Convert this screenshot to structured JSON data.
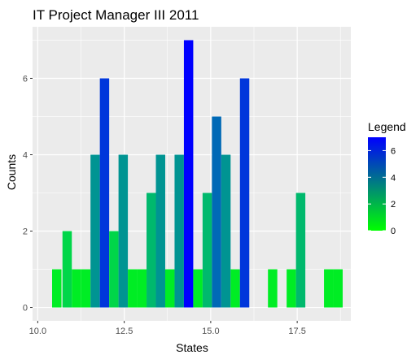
{
  "chart_data": {
    "type": "bar",
    "title": "IT Project Manager III 2011",
    "xlabel": "States",
    "ylabel": "Counts",
    "xlim": [
      9.85,
      19.05
    ],
    "ylim": [
      -0.35,
      7.35
    ],
    "x_ticks": [
      10.0,
      12.5,
      15.0,
      17.5
    ],
    "x_tick_labels": [
      "10.0",
      "12.5",
      "15.0",
      "17.5"
    ],
    "y_ticks": [
      0,
      2,
      4,
      6
    ],
    "y_tick_labels": [
      "0",
      "2",
      "4",
      "6"
    ],
    "bin_width": 0.27,
    "bins": [
      {
        "x": 10.55,
        "count": 1
      },
      {
        "x": 10.85,
        "count": 2
      },
      {
        "x": 11.12,
        "count": 1
      },
      {
        "x": 11.39,
        "count": 1
      },
      {
        "x": 11.66,
        "count": 4
      },
      {
        "x": 11.93,
        "count": 6
      },
      {
        "x": 12.2,
        "count": 2
      },
      {
        "x": 12.47,
        "count": 4
      },
      {
        "x": 12.74,
        "count": 1
      },
      {
        "x": 13.01,
        "count": 1
      },
      {
        "x": 13.28,
        "count": 3
      },
      {
        "x": 13.55,
        "count": 4
      },
      {
        "x": 13.82,
        "count": 1
      },
      {
        "x": 14.09,
        "count": 4
      },
      {
        "x": 14.36,
        "count": 7
      },
      {
        "x": 14.63,
        "count": 1
      },
      {
        "x": 14.9,
        "count": 3
      },
      {
        "x": 15.17,
        "count": 5
      },
      {
        "x": 15.44,
        "count": 4
      },
      {
        "x": 15.71,
        "count": 1
      },
      {
        "x": 15.98,
        "count": 6
      },
      {
        "x": 16.79,
        "count": 1
      },
      {
        "x": 17.33,
        "count": 1
      },
      {
        "x": 17.6,
        "count": 3
      },
      {
        "x": 18.41,
        "count": 1
      },
      {
        "x": 18.68,
        "count": 1
      }
    ],
    "fill_scale": {
      "low": "#00ff00",
      "high": "#0000ff",
      "min": 0,
      "max": 7
    },
    "legend": {
      "title": "Legend",
      "position": "right",
      "breaks": [
        0,
        2,
        4,
        6
      ],
      "labels": [
        "0",
        "2",
        "4",
        "6"
      ]
    },
    "panel_background": "#ebebeb",
    "grid_color": "#ffffff",
    "grid": true
  }
}
